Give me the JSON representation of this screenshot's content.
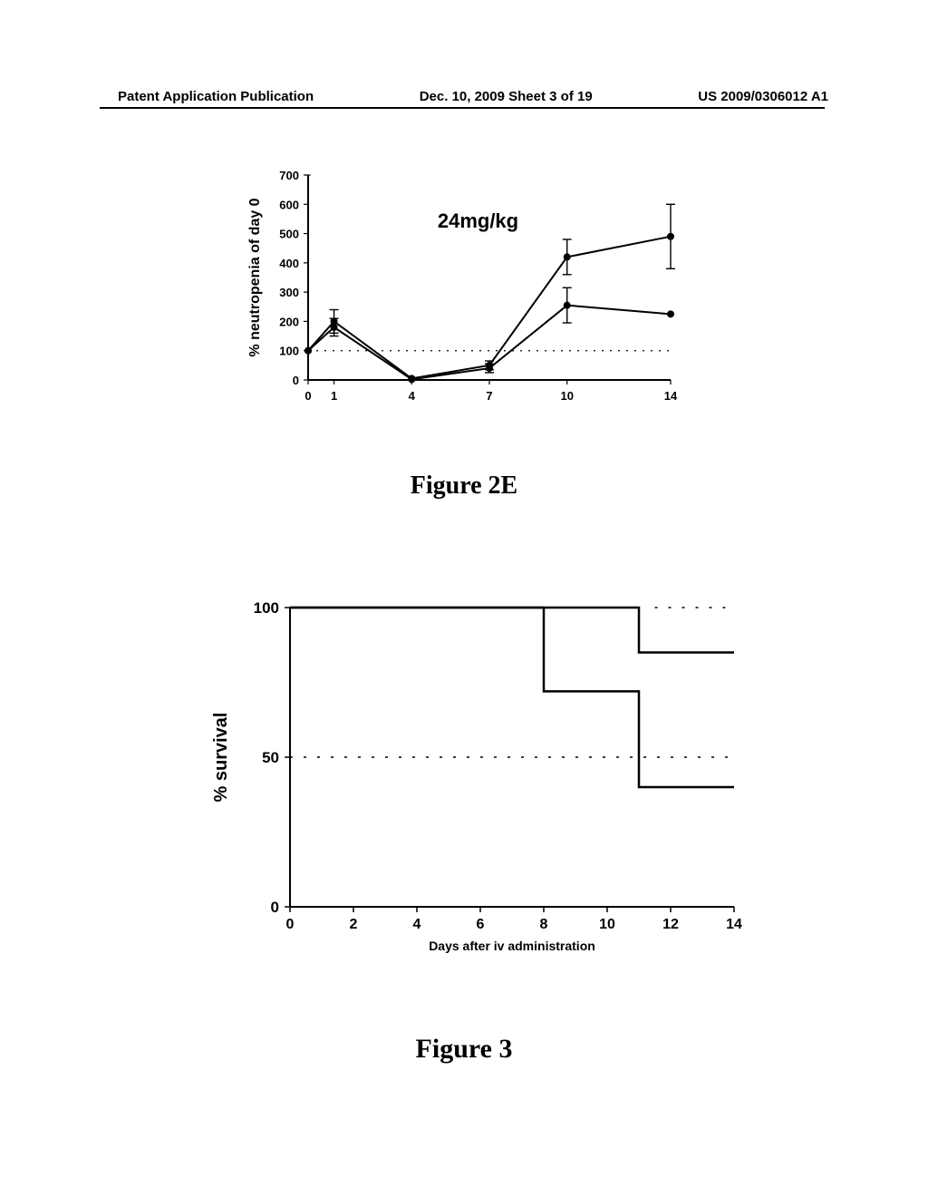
{
  "header": {
    "left": "Patent Application Publication",
    "center": "Dec. 10, 2009  Sheet 3 of 19",
    "right": "US 2009/0306012 A1"
  },
  "figure2E": {
    "type": "line",
    "caption": "Figure 2E",
    "caption_fontsize": 28,
    "annotation": "24mg/kg",
    "annotation_fontsize": 22,
    "ylabel": "% neutropenia of day 0",
    "label_fontsize": 16,
    "xlim": [
      0,
      14
    ],
    "ylim": [
      0,
      700
    ],
    "ytick_step": 100,
    "xticks": [
      0,
      1,
      4,
      7,
      10,
      14
    ],
    "axis_color": "#000000",
    "line_color": "#000000",
    "line_width": 2,
    "marker_style": "circle",
    "marker_size": 4,
    "background_color": "#ffffff",
    "reference_line_y": 100,
    "reference_style": "dotted",
    "seriesA": {
      "x": [
        0,
        1,
        4,
        7,
        10,
        14
      ],
      "y": [
        100,
        200,
        5,
        50,
        420,
        490
      ],
      "err": [
        0,
        40,
        0,
        15,
        60,
        110
      ]
    },
    "seriesB": {
      "x": [
        0,
        1,
        4,
        7,
        10,
        14
      ],
      "y": [
        100,
        180,
        2,
        40,
        255,
        225
      ],
      "err": [
        0,
        30,
        0,
        15,
        60,
        0
      ]
    }
  },
  "figure3": {
    "type": "line",
    "caption": "Figure 3",
    "caption_fontsize": 30,
    "ylabel": "% survival",
    "xlabel": "Days after iv administration",
    "ylabel_fontsize": 20,
    "xlabel_fontsize": 14,
    "xlim": [
      0,
      14
    ],
    "ylim": [
      0,
      100
    ],
    "yticks": [
      0,
      50,
      100
    ],
    "xticks": [
      0,
      2,
      4,
      6,
      8,
      10,
      12,
      14
    ],
    "axis_color": "#000000",
    "line_color": "#000000",
    "line_width": 2.5,
    "background_color": "#ffffff",
    "reference_line_y": 50,
    "reference_style": "dotted",
    "dotted_top_x_start": 11.5,
    "seriesA": {
      "steps": [
        [
          0,
          100
        ],
        [
          8,
          100
        ],
        [
          8,
          72
        ],
        [
          11,
          72
        ],
        [
          11,
          40
        ],
        [
          14,
          40
        ]
      ]
    },
    "seriesB": {
      "steps": [
        [
          0,
          100
        ],
        [
          11,
          100
        ],
        [
          11,
          85
        ],
        [
          14,
          85
        ]
      ]
    }
  }
}
